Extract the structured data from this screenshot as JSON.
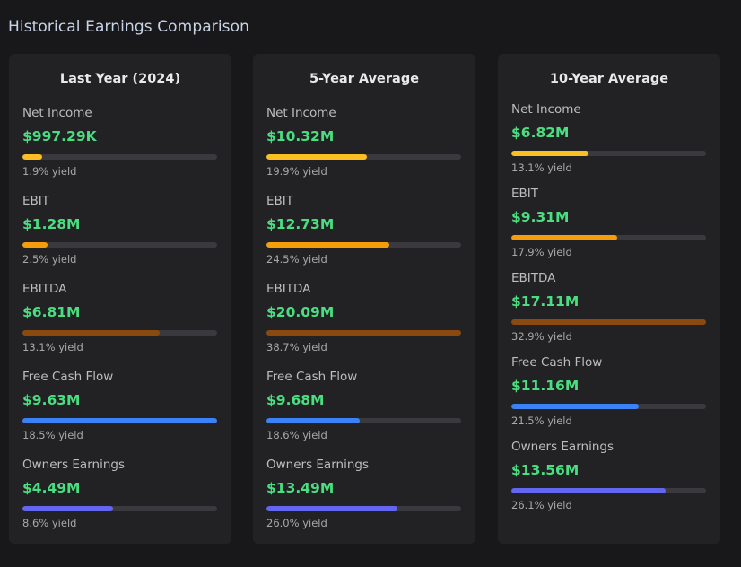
{
  "page": {
    "title": "Historical Earnings Comparison"
  },
  "colors": {
    "net_income": "#fbbf24",
    "ebit": "#f59e0b",
    "ebitda": "#8a4a0f",
    "fcf": "#3b82f6",
    "owners": "#6366f1"
  },
  "columns": [
    {
      "title": "Last Year (2024)",
      "metrics": [
        {
          "label": "Net Income",
          "value": "$997.29K",
          "yield": "1.9% yield",
          "fill": 0.1,
          "color_key": "net_income"
        },
        {
          "label": "EBIT",
          "value": "$1.28M",
          "yield": "2.5% yield",
          "fill": 0.13,
          "color_key": "ebit"
        },
        {
          "label": "EBITDA",
          "value": "$6.81M",
          "yield": "13.1% yield",
          "fill": 0.707,
          "color_key": "ebitda"
        },
        {
          "label": "Free Cash Flow",
          "value": "$9.63M",
          "yield": "18.5% yield",
          "fill": 1.0,
          "color_key": "fcf"
        },
        {
          "label": "Owners Earnings",
          "value": "$4.49M",
          "yield": "8.6% yield",
          "fill": 0.466,
          "color_key": "owners"
        }
      ]
    },
    {
      "title": "5-Year Average",
      "metrics": [
        {
          "label": "Net Income",
          "value": "$10.32M",
          "yield": "19.9% yield",
          "fill": 0.514,
          "color_key": "net_income"
        },
        {
          "label": "EBIT",
          "value": "$12.73M",
          "yield": "24.5% yield",
          "fill": 0.633,
          "color_key": "ebit"
        },
        {
          "label": "EBITDA",
          "value": "$20.09M",
          "yield": "38.7% yield",
          "fill": 1.0,
          "color_key": "ebitda"
        },
        {
          "label": "Free Cash Flow",
          "value": "$9.68M",
          "yield": "18.6% yield",
          "fill": 0.481,
          "color_key": "fcf"
        },
        {
          "label": "Owners Earnings",
          "value": "$13.49M",
          "yield": "26.0% yield",
          "fill": 0.672,
          "color_key": "owners"
        }
      ]
    },
    {
      "title": "10-Year Average",
      "metrics": [
        {
          "label": "Net Income",
          "value": "$6.82M",
          "yield": "13.1% yield",
          "fill": 0.398,
          "color_key": "net_income"
        },
        {
          "label": "EBIT",
          "value": "$9.31M",
          "yield": "17.9% yield",
          "fill": 0.544,
          "color_key": "ebit"
        },
        {
          "label": "EBITDA",
          "value": "$17.11M",
          "yield": "32.9% yield",
          "fill": 1.0,
          "color_key": "ebitda"
        },
        {
          "label": "Free Cash Flow",
          "value": "$11.16M",
          "yield": "21.5% yield",
          "fill": 0.653,
          "color_key": "fcf"
        },
        {
          "label": "Owners Earnings",
          "value": "$13.56M",
          "yield": "26.1% yield",
          "fill": 0.793,
          "color_key": "owners"
        }
      ]
    }
  ]
}
